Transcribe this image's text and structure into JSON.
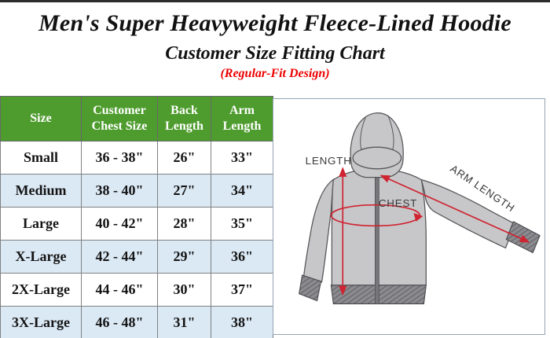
{
  "header": {
    "title": "Men's Super Heavyweight Fleece-Lined Hoodie",
    "subtitle": "Customer Size Fitting Chart",
    "fit_note": "(Regular-Fit Design)"
  },
  "chart_data": {
    "type": "table",
    "title": "Customer Size Fitting Chart",
    "subtitle": "(Regular-Fit Design)",
    "columns": [
      "Size",
      "Customer Chest Size",
      "Back Length",
      "Arm Length"
    ],
    "rows": [
      [
        "Small",
        "36 - 38\"",
        "26\"",
        "33\""
      ],
      [
        "Medium",
        "38 - 40\"",
        "27\"",
        "34\""
      ],
      [
        "Large",
        "40 - 42\"",
        "28\"",
        "35\""
      ],
      [
        "X-Large",
        "42 - 44\"",
        "29\"",
        "36\""
      ],
      [
        "2X-Large",
        "44 - 46\"",
        "30\"",
        "37\""
      ],
      [
        "3X-Large",
        "46 - 48\"",
        "31\"",
        "38\""
      ]
    ]
  },
  "diagram": {
    "labels": {
      "length": "LENGTH",
      "chest": "CHEST",
      "arm_length": "ARM LENGTH"
    }
  },
  "colors": {
    "header_green": "#4e9c2e",
    "row_alt_blue": "#dbe9f5",
    "accent_red": "#ee0000",
    "arrow_red": "#cf2431"
  }
}
